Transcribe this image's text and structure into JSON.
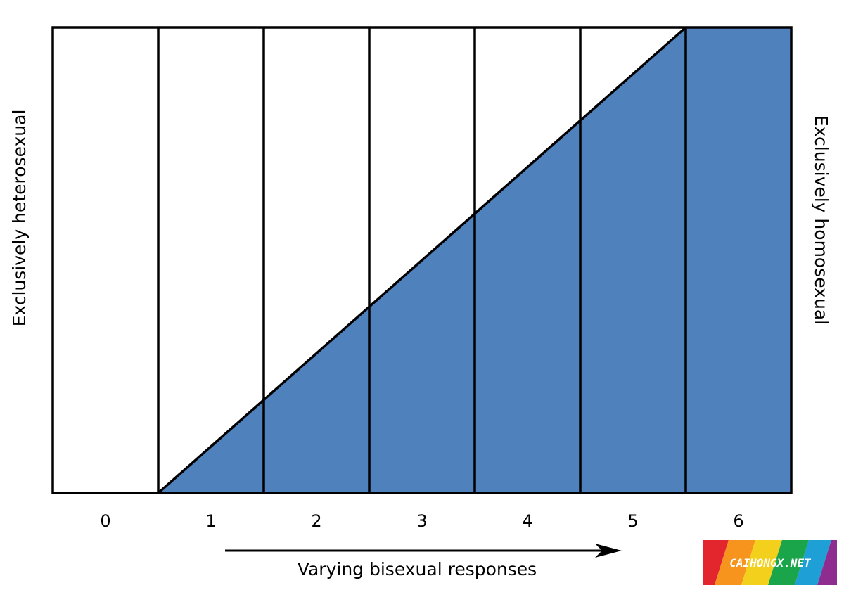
{
  "diagram": {
    "fill_color": "#4f81bd",
    "line_color": "#000000",
    "background_color": "#ffffff",
    "left_label": "Exclusively heterosexual",
    "right_label": "Exclusively homosexual",
    "scale_labels": [
      "0",
      "1",
      "2",
      "3",
      "4",
      "5",
      "6"
    ],
    "axis_caption": "Varying bisexual responses",
    "arrow_direction": "right"
  },
  "watermark": {
    "text": "CAIHONGX.NET",
    "stripe_colors": [
      "#e3262e",
      "#f7941d",
      "#f2d01c",
      "#1aa54a",
      "#1e9fd6",
      "#8e2c8f"
    ]
  }
}
